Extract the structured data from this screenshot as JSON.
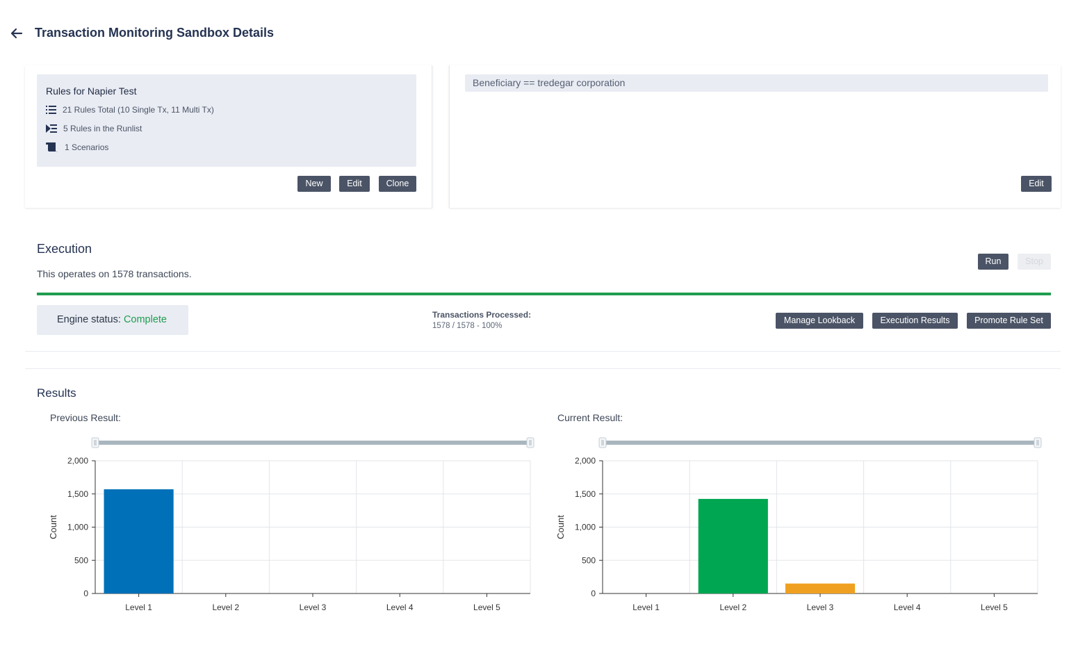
{
  "header": {
    "title": "Transaction Monitoring Sandbox Details"
  },
  "rules": {
    "title": "Rules for Napier Test",
    "total": "21 Rules Total (10 Single Tx, 11 Multi Tx)",
    "runlist": "5 Rules in the Runlist",
    "scenarios": "1 Scenarios",
    "buttons": {
      "new": "New",
      "edit": "Edit",
      "clone": "Clone"
    }
  },
  "filter": {
    "expression": "Beneficiary == tredegar corporation",
    "edit_label": "Edit"
  },
  "execution": {
    "heading": "Execution",
    "description": "This operates on 1578 transactions.",
    "run_label": "Run",
    "stop_label": "Stop",
    "progress": 1.0,
    "engine_status_label": "Engine status:",
    "engine_status_value": "Complete",
    "transactions_label": "Transactions Processed:",
    "transactions_value": "1578 / 1578 - 100%",
    "buttons": {
      "manage_lookback": "Manage Lookback",
      "execution_results": "Execution Results",
      "promote_rule_set": "Promote Rule Set"
    }
  },
  "colors": {
    "accent": "#1f9d4f",
    "button": "#4b5466",
    "level1": "#0070b8",
    "level2": "#00a651",
    "level3": "#f0a020"
  },
  "results": {
    "title": "Results",
    "previous_label": "Previous Result:",
    "current_label": "Current Result:"
  },
  "chart_data": [
    {
      "type": "bar",
      "categories": [
        "Level 1",
        "Level 2",
        "Level 3",
        "Level 4",
        "Level 5"
      ],
      "values": [
        1570,
        0,
        0,
        0,
        0
      ],
      "colors": [
        "#0070b8",
        "#0070b8",
        "#0070b8",
        "#0070b8",
        "#0070b8"
      ],
      "ylabel": "Count",
      "ylim": [
        0,
        2000
      ],
      "yticks": [
        "0",
        "500",
        "1,000",
        "1,500",
        "2,000"
      ],
      "grid": true
    },
    {
      "type": "bar",
      "categories": [
        "Level 1",
        "Level 2",
        "Level 3",
        "Level 4",
        "Level 5"
      ],
      "values": [
        0,
        1425,
        150,
        0,
        0
      ],
      "colors": [
        "#0070b8",
        "#00a651",
        "#f0a020",
        "#0070b8",
        "#0070b8"
      ],
      "ylabel": "Count",
      "ylim": [
        0,
        2000
      ],
      "yticks": [
        "0",
        "500",
        "1,000",
        "1,500",
        "2,000"
      ],
      "grid": true
    }
  ]
}
